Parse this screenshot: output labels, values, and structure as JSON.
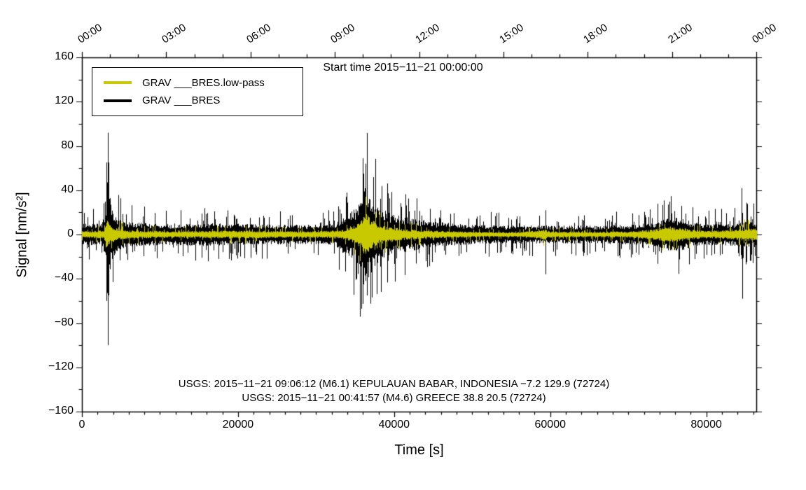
{
  "chart_data": {
    "type": "line",
    "title": "Start time 2015−11−21 00:00:00",
    "xlabel": "Time [s]",
    "ylabel": "Signal [nm/s²]",
    "xlim": [
      0,
      86400
    ],
    "ylim": [
      -160,
      160
    ],
    "grid": false,
    "x_minor_step": 2000,
    "y_minor_step": 20,
    "top_minor_step": 3600,
    "x_ticks": [
      {
        "v": 0,
        "label": "0"
      },
      {
        "v": 20000,
        "label": "20000"
      },
      {
        "v": 40000,
        "label": "40000"
      },
      {
        "v": 60000,
        "label": "60000"
      },
      {
        "v": 80000,
        "label": "80000"
      }
    ],
    "y_ticks": [
      {
        "v": 160,
        "label": "160"
      },
      {
        "v": 120,
        "label": "120"
      },
      {
        "v": 80,
        "label": "80"
      },
      {
        "v": 40,
        "label": "40"
      },
      {
        "v": 0,
        "label": "0"
      },
      {
        "v": -40,
        "label": "−40"
      },
      {
        "v": -80,
        "label": "−80"
      },
      {
        "v": -120,
        "label": "−120"
      },
      {
        "v": -160,
        "label": "−160"
      }
    ],
    "top_ticks": [
      {
        "v": 0,
        "label": "00:00"
      },
      {
        "v": 10800,
        "label": "03:00"
      },
      {
        "v": 21600,
        "label": "06:00"
      },
      {
        "v": 32400,
        "label": "09:00"
      },
      {
        "v": 43200,
        "label": "12:00"
      },
      {
        "v": 54000,
        "label": "15:00"
      },
      {
        "v": 64800,
        "label": "18:00"
      },
      {
        "v": 75600,
        "label": "21:00"
      },
      {
        "v": 86400,
        "label": "00:00"
      }
    ],
    "legend": {
      "position": "top-left",
      "entries": [
        {
          "label": "GRAV ___BRES.low-pass",
          "color": "#c9c900"
        },
        {
          "label": "GRAV ___BRES",
          "color": "#000000"
        }
      ]
    },
    "annotations": [
      "USGS: 2015−11−21 09:06:12 (M6.1) KEPULAUAN BABAR, INDONESIA −7.2 129.9 (72724)",
      "USGS: 2015−11−21 00:41:57 (M4.6) GREECE 38.8 20.5 (72724)"
    ],
    "envelope_format": "[time_s, approx_peak_amplitude_nm_per_s2]",
    "series": [
      {
        "name": "GRAV ___BRES",
        "color": "#000000",
        "style": "noise-band",
        "envelope": [
          [
            0,
            13
          ],
          [
            2500,
            13
          ],
          [
            3050,
            30
          ],
          [
            3250,
            80
          ],
          [
            3400,
            60
          ],
          [
            3700,
            35
          ],
          [
            4500,
            22
          ],
          [
            6000,
            15
          ],
          [
            10000,
            13
          ],
          [
            15000,
            14
          ],
          [
            20000,
            13
          ],
          [
            25000,
            12
          ],
          [
            30000,
            12
          ],
          [
            32500,
            14
          ],
          [
            33500,
            25
          ],
          [
            34500,
            28
          ],
          [
            35300,
            35
          ],
          [
            35900,
            50
          ],
          [
            36400,
            60
          ],
          [
            36900,
            50
          ],
          [
            37600,
            38
          ],
          [
            38500,
            30
          ],
          [
            40000,
            24
          ],
          [
            42000,
            20
          ],
          [
            44000,
            17
          ],
          [
            47000,
            14
          ],
          [
            50000,
            12
          ],
          [
            54000,
            11
          ],
          [
            58000,
            11
          ],
          [
            62000,
            11
          ],
          [
            66000,
            11
          ],
          [
            70000,
            12
          ],
          [
            73000,
            14
          ],
          [
            75000,
            19
          ],
          [
            76500,
            21
          ],
          [
            78000,
            16
          ],
          [
            80000,
            13
          ],
          [
            82000,
            13
          ],
          [
            84000,
            14
          ],
          [
            85000,
            16
          ],
          [
            86400,
            16
          ]
        ],
        "spikes": [
          {
            "t": 3180,
            "hi": 55,
            "lo": -60
          },
          {
            "t": 3280,
            "hi": 92,
            "lo": -35
          },
          {
            "t": 3330,
            "hi": 40,
            "lo": -100
          },
          {
            "t": 3420,
            "hi": 45,
            "lo": -55
          },
          {
            "t": 36100,
            "hi": 55,
            "lo": -45
          },
          {
            "t": 36350,
            "hi": 64,
            "lo": -42
          },
          {
            "t": 36550,
            "hi": 45,
            "lo": -55
          },
          {
            "t": 59400,
            "hi": 22,
            "lo": -36
          },
          {
            "t": 84480,
            "hi": 42,
            "lo": -22
          },
          {
            "t": 84620,
            "hi": 14,
            "lo": -58
          }
        ]
      },
      {
        "name": "GRAV ___BRES.low-pass",
        "color": "#c9c900",
        "style": "noise-band",
        "envelope": [
          [
            0,
            4
          ],
          [
            2800,
            5
          ],
          [
            3150,
            20
          ],
          [
            3450,
            14
          ],
          [
            4200,
            8
          ],
          [
            6000,
            5
          ],
          [
            12000,
            4
          ],
          [
            20000,
            5
          ],
          [
            28000,
            4
          ],
          [
            33000,
            5
          ],
          [
            34500,
            9
          ],
          [
            35500,
            16
          ],
          [
            36300,
            26
          ],
          [
            36900,
            20
          ],
          [
            37800,
            13
          ],
          [
            39000,
            10
          ],
          [
            41000,
            7
          ],
          [
            44000,
            5
          ],
          [
            48000,
            4
          ],
          [
            52000,
            3
          ],
          [
            56000,
            3
          ],
          [
            59300,
            6
          ],
          [
            60000,
            4
          ],
          [
            65000,
            3
          ],
          [
            70000,
            4
          ],
          [
            73000,
            6
          ],
          [
            75500,
            10
          ],
          [
            77000,
            8
          ],
          [
            79000,
            5
          ],
          [
            82000,
            5
          ],
          [
            84000,
            7
          ],
          [
            85500,
            8
          ],
          [
            86400,
            8
          ]
        ],
        "spikes": []
      }
    ]
  }
}
